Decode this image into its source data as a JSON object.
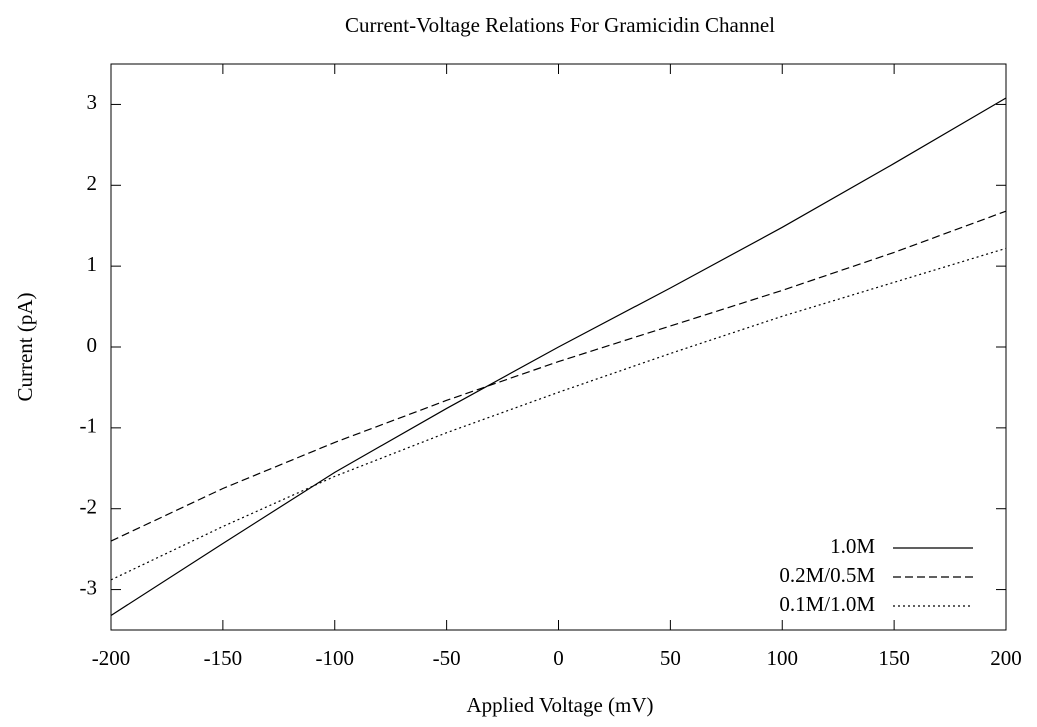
{
  "chart_data": {
    "type": "line",
    "title": "Current-Voltage Relations For Gramicidin Channel",
    "x_label": "Applied Voltage (mV)",
    "y_label": "Current (pA)",
    "x": [
      -200,
      -150,
      -100,
      -50,
      0,
      50,
      100,
      150,
      200
    ],
    "series": [
      {
        "name": "1.0M",
        "color": "#000000",
        "style": "solid",
        "values": [
          -3.32,
          -2.43,
          -1.55,
          -0.76,
          0,
          0.73,
          1.48,
          2.27,
          3.08
        ]
      },
      {
        "name": "0.2M/0.5M",
        "color": "#000000",
        "style": "dashed",
        "values": [
          -2.4,
          -1.75,
          -1.18,
          -0.66,
          -0.18,
          0.26,
          0.7,
          1.17,
          1.68
        ]
      },
      {
        "name": "0.1M/1.0M",
        "color": "#000000",
        "style": "dotted",
        "values": [
          -2.88,
          -2.22,
          -1.6,
          -1.06,
          -0.56,
          -0.08,
          0.38,
          0.8,
          1.22
        ]
      }
    ],
    "xlim": [
      -200,
      200
    ],
    "xticks": [
      -200,
      -150,
      -100,
      -50,
      0,
      50,
      100,
      150,
      200
    ],
    "ylim": [
      -3.5,
      3.5
    ],
    "yticks": [
      -3,
      -2,
      -1,
      0,
      1,
      2,
      3
    ],
    "legend": "bottom-right"
  }
}
